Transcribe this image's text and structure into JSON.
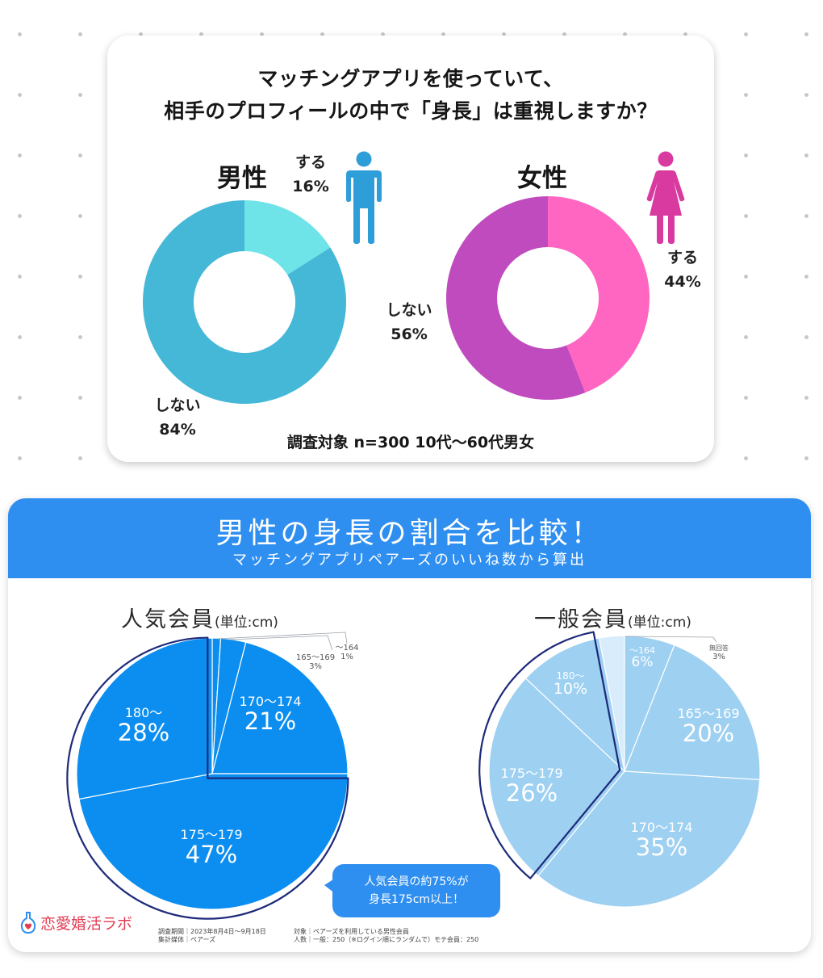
{
  "survey_card": {
    "title_line1": "マッチングアプリを使っていて、",
    "title_line2": "相手のプロフィールの中で「身長」は重視しますか？",
    "footer": "調査対象 n=300 10代〜60代男女"
  },
  "height_card": {
    "banner_title": "男性の身長の割合を比較！",
    "banner_subtitle": "マッチングアプリペアーズのいいね数から算出",
    "callout_line1": "人気会員の約75%が",
    "callout_line2": "身長175cm以上！",
    "logo_text": "恋愛婚活ラボ",
    "footnote_left_1": "調査期間｜2023年8月4日〜9月18日",
    "footnote_left_2": "集計媒体｜ペアーズ",
    "footnote_right_1": "対象｜ペアーズを利用している男性会員",
    "footnote_right_2": "人数｜一般：250（※ログイン順にランダムで）モテ会員：250"
  },
  "colors": {
    "male_yes": "#6ee3e8",
    "male_no": "#45b8d8",
    "female_yes": "#ff66c2",
    "female_no": "#c04bbf",
    "male_icon": "#2e9ed8",
    "female_icon": "#d83aa0",
    "banner": "#2f8ff0",
    "popular_pie": "#0b8ef0",
    "general_pie": "#9ed0f2",
    "outline": "#1d2a7a"
  },
  "chart_data": [
    {
      "type": "pie",
      "variant": "donut",
      "title": "男性",
      "categories": [
        "する",
        "しない"
      ],
      "values": [
        16,
        84
      ],
      "labels": [
        "16%",
        "84%"
      ]
    },
    {
      "type": "pie",
      "variant": "donut",
      "title": "女性",
      "categories": [
        "する",
        "しない"
      ],
      "values": [
        44,
        56
      ],
      "labels": [
        "44%",
        "56%"
      ]
    },
    {
      "type": "pie",
      "title": "人気会員",
      "unit": "(単位:cm)",
      "categories": [
        "〜164",
        "165〜169",
        "170〜174",
        "175〜179",
        "180〜"
      ],
      "values": [
        1,
        3,
        21,
        47,
        28
      ],
      "labels": [
        "1%",
        "3%",
        "21%",
        "47%",
        "28%"
      ],
      "highlighted": [
        "175〜179",
        "180〜"
      ]
    },
    {
      "type": "pie",
      "title": "一般会員",
      "unit": "(単位:cm)",
      "categories": [
        "〜164",
        "165〜169",
        "170〜174",
        "175〜179",
        "180〜",
        "無回答"
      ],
      "values": [
        6,
        20,
        35,
        26,
        10,
        3
      ],
      "labels": [
        "6%",
        "20%",
        "35%",
        "26%",
        "10%",
        "3%"
      ],
      "highlighted": [
        "175〜179",
        "180〜"
      ]
    }
  ]
}
